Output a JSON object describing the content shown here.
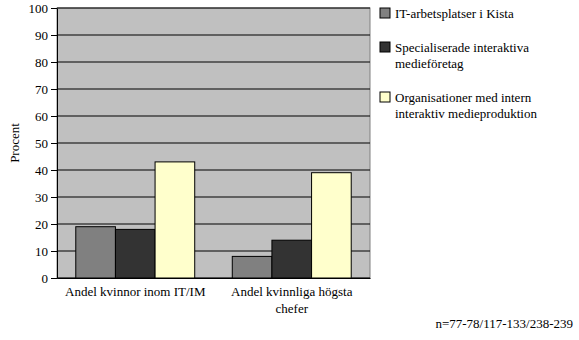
{
  "chart_data": {
    "type": "bar",
    "ylabel": "Procent",
    "categories": [
      "Andel kvinnor inom IT/IM",
      "Andel kvinnliga högsta chefer"
    ],
    "series": [
      {
        "name": "IT-arbetsplatser i Kista",
        "color": "#808080",
        "values": [
          19,
          8
        ]
      },
      {
        "name": "Specialiserade interaktiva medieföretag",
        "color": "#333333",
        "values": [
          18,
          14
        ]
      },
      {
        "name": "Organisationer med intern interaktiv medieproduktion",
        "color": "#ffffcc",
        "values": [
          43,
          39
        ]
      }
    ],
    "ylim": [
      0,
      100
    ],
    "yticks": [
      0,
      10,
      20,
      30,
      40,
      50,
      60,
      70,
      80,
      90,
      100
    ],
    "grid": true,
    "legend": "right",
    "annotation": "n=77-78/117-133/238-239"
  }
}
